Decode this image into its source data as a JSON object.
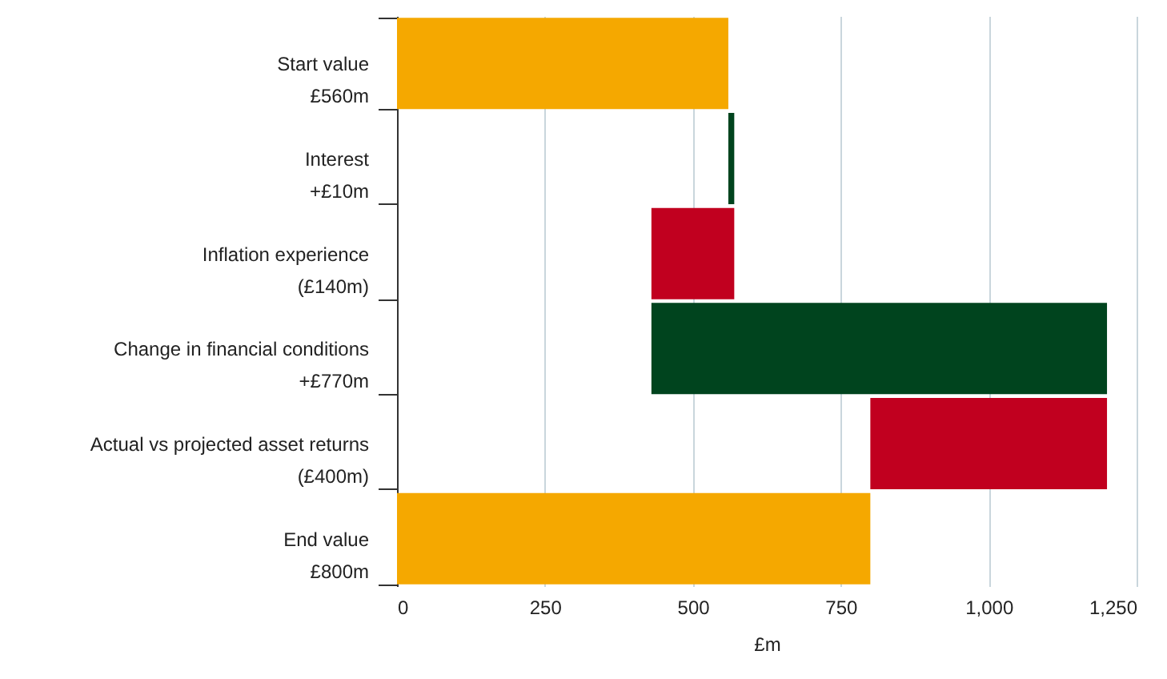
{
  "chart_data": {
    "type": "bar",
    "orientation": "horizontal",
    "categories": [
      "Start value\n£560m",
      "Interest\n+£10m",
      "Inflation experience\n(£140m)",
      "Change in financial conditions\n+£770m",
      "Actual vs projected asset returns\n(£400m)",
      "End value\n£800m"
    ],
    "values": [
      560,
      10,
      -140,
      770,
      -400,
      800
    ],
    "base": [
      0,
      560,
      570,
      430,
      1200,
      0
    ],
    "colors": [
      "#f5a800",
      "#00441e",
      "#c1001f",
      "#00441e",
      "#c1001f",
      "#f5a800"
    ],
    "xlabel": "£m",
    "xlim": [
      0,
      1250
    ],
    "xticks": [
      0,
      250,
      500,
      750,
      {
        "value": 1000,
        "label": "1,000"
      },
      {
        "value": 1250,
        "label": "1,250"
      }
    ],
    "grid": "x"
  }
}
